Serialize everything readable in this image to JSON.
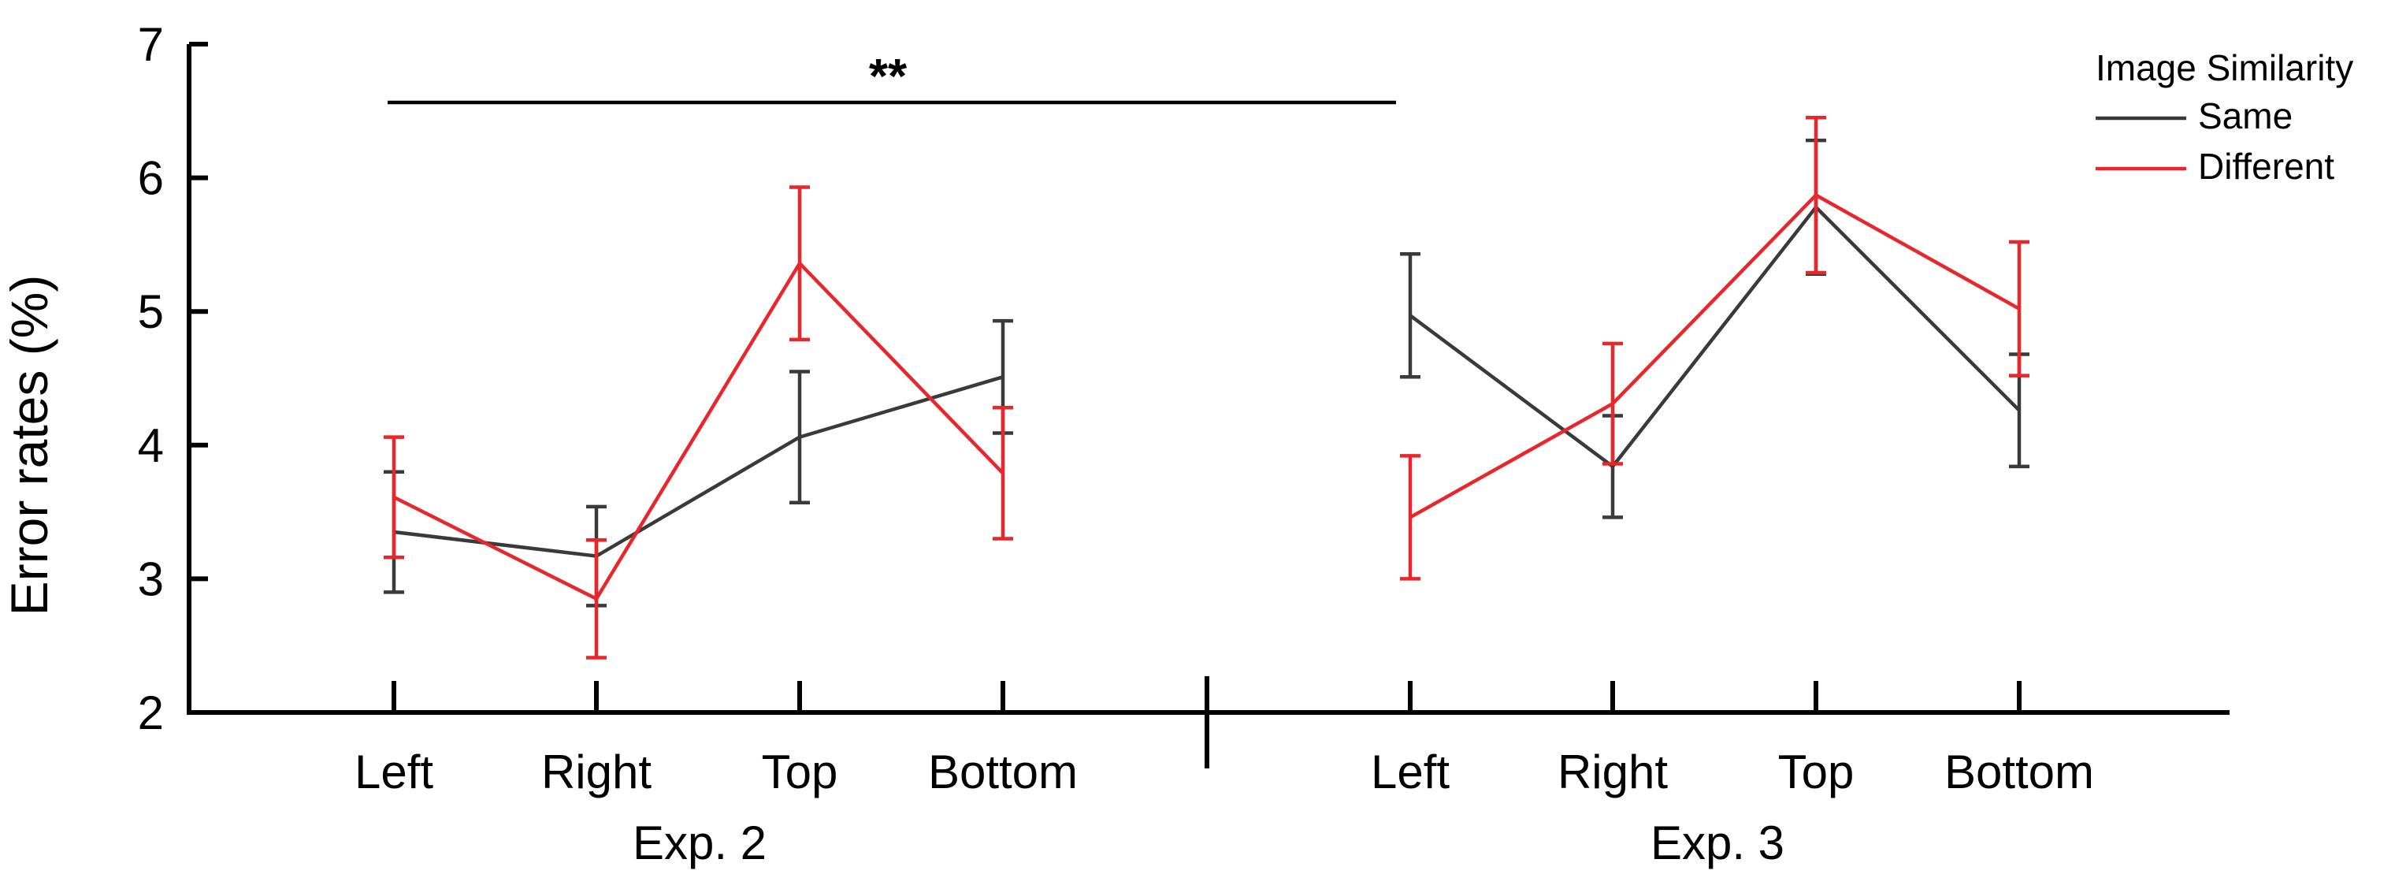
{
  "chart_data": {
    "type": "line",
    "ylabel": "Error rates (%)",
    "ylim": [
      2,
      7
    ],
    "yticks": [
      "2",
      "3",
      "4",
      "5",
      "6",
      "7"
    ],
    "groups": [
      {
        "label": "Exp. 2",
        "categories": [
          "Left",
          "Right",
          "Top",
          "Bottom"
        ],
        "series": [
          {
            "name": "Same",
            "values": [
              3.35,
              3.17,
              4.06,
              4.51
            ],
            "errors": [
              0.45,
              0.37,
              0.49,
              0.42
            ]
          },
          {
            "name": "Different",
            "values": [
              3.61,
              2.85,
              5.36,
              3.79
            ],
            "errors": [
              0.45,
              0.44,
              0.57,
              0.49
            ]
          }
        ]
      },
      {
        "label": "Exp. 3",
        "categories": [
          "Left",
          "Right",
          "Top",
          "Bottom"
        ],
        "series": [
          {
            "name": "Same",
            "values": [
              4.97,
              3.84,
              5.78,
              4.26
            ],
            "errors": [
              0.46,
              0.38,
              0.5,
              0.42
            ]
          },
          {
            "name": "Different",
            "values": [
              3.46,
              4.31,
              5.87,
              5.02
            ],
            "errors": [
              0.46,
              0.45,
              0.58,
              0.5
            ]
          }
        ]
      }
    ],
    "significance": {
      "label": "**"
    },
    "legend": {
      "title": "Image Similarity",
      "position": "top-right",
      "entries": [
        {
          "name": "Same",
          "color": "#3a3a3a"
        },
        {
          "name": "Different",
          "color": "#e8262b"
        }
      ]
    },
    "colors": {
      "Same": "#3a3a3a",
      "Different": "#e8262b",
      "axis": "#000000"
    },
    "grid": false
  }
}
